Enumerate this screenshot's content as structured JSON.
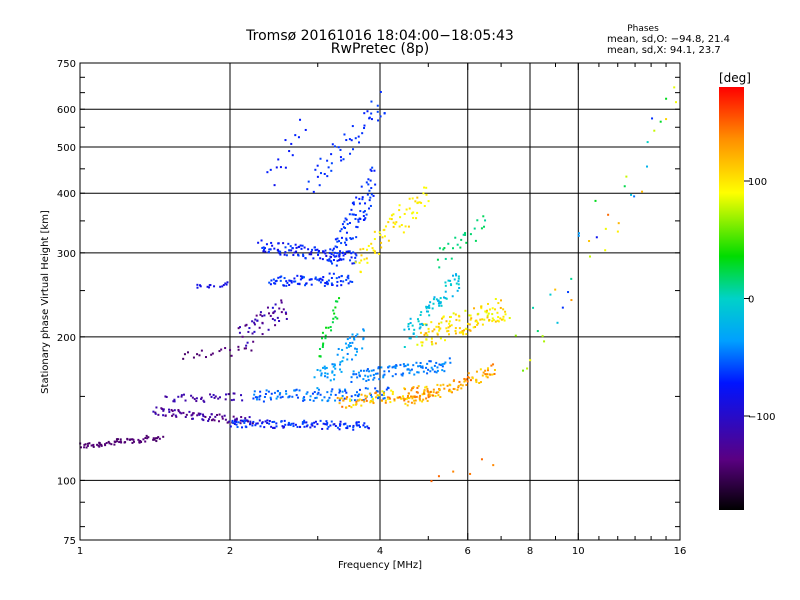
{
  "chart_data": {
    "type": "scatter",
    "title": "Tromsø 20161016 18:04:00−18:05:43",
    "subtitle": "RwPretec (8p)",
    "xlabel": "Frequency [MHz]",
    "ylabel": "Stationary phase Virtual Height [km]",
    "x_scale": "log",
    "y_scale": "log",
    "xlim": [
      1,
      16
    ],
    "ylim": [
      75,
      750
    ],
    "x_ticks": [
      1,
      2,
      4,
      6,
      8,
      10,
      16
    ],
    "x_tick_labels": [
      "1",
      "2",
      "4",
      "6",
      "8",
      "10",
      "16"
    ],
    "y_ticks": [
      75,
      100,
      200,
      300,
      400,
      500,
      600,
      750
    ],
    "y_tick_labels": [
      "75",
      "100",
      "200",
      "300",
      "400",
      "500",
      "600",
      "750"
    ],
    "grid": true,
    "stats": {
      "heading": "Phases",
      "line_o": "mean, sd,O: −94.8, 21.4",
      "line_x": "mean, sd,X:  94.1, 23.7"
    },
    "colorbar": {
      "label": "[deg]",
      "range": [
        -180,
        180
      ],
      "ticks": [
        100,
        0,
        -100
      ],
      "tick_labels": [
        "100",
        "0",
        "−100"
      ],
      "colormap": "rainbow"
    },
    "series": [
      {
        "type": "band",
        "f0": 1.0,
        "f1": 1.45,
        "h0": 118,
        "h1": 123,
        "ph0": -150,
        "ph1": -140,
        "n": 70,
        "s": 0.015
      },
      {
        "type": "band",
        "f0": 1.4,
        "f1": 2.2,
        "h0": 140,
        "h1": 133,
        "ph0": -145,
        "ph1": -125,
        "n": 80,
        "s": 0.02
      },
      {
        "type": "band",
        "f0": 1.5,
        "f1": 2.1,
        "h0": 148,
        "h1": 150,
        "ph0": -135,
        "ph1": -125,
        "n": 35,
        "s": 0.02
      },
      {
        "type": "band",
        "f0": 1.6,
        "f1": 2.2,
        "h0": 182,
        "h1": 188,
        "ph0": -150,
        "ph1": -140,
        "n": 20,
        "s": 0.02
      },
      {
        "type": "band",
        "f0": 1.7,
        "f1": 2.0,
        "h0": 255,
        "h1": 258,
        "ph0": -120,
        "ph1": -115,
        "n": 15,
        "s": 0.01
      },
      {
        "type": "band",
        "f0": 2.0,
        "f1": 3.8,
        "h0": 132,
        "h1": 130,
        "ph0": -120,
        "ph1": -90,
        "n": 120,
        "s": 0.02
      },
      {
        "type": "band",
        "f0": 2.2,
        "f1": 4.2,
        "h0": 150,
        "h1": 152,
        "ph0": -100,
        "ph1": -70,
        "n": 110,
        "s": 0.03
      },
      {
        "type": "band",
        "f0": 2.1,
        "f1": 2.6,
        "h0": 200,
        "h1": 230,
        "ph0": -145,
        "ph1": -120,
        "n": 50,
        "s": 0.06
      },
      {
        "type": "band",
        "f0": 2.3,
        "f1": 3.6,
        "h0": 310,
        "h1": 292,
        "ph0": -120,
        "ph1": -95,
        "n": 110,
        "s": 0.03
      },
      {
        "type": "band",
        "f0": 2.4,
        "f1": 3.5,
        "h0": 262,
        "h1": 262,
        "ph0": -115,
        "ph1": -90,
        "n": 80,
        "s": 0.025
      },
      {
        "type": "band",
        "f0": 3.2,
        "f1": 3.9,
        "h0": 290,
        "h1": 420,
        "ph0": -110,
        "ph1": -95,
        "n": 90,
        "s": 0.08
      },
      {
        "type": "band",
        "f0": 3.0,
        "f1": 3.7,
        "h0": 160,
        "h1": 200,
        "ph0": -80,
        "ph1": -60,
        "n": 60,
        "s": 0.06
      },
      {
        "type": "band",
        "f0": 3.0,
        "f1": 3.3,
        "h0": 180,
        "h1": 235,
        "ph0": 10,
        "ph1": 30,
        "n": 25,
        "s": 0.04
      },
      {
        "type": "band",
        "f0": 3.5,
        "f1": 5.5,
        "h0": 165,
        "h1": 175,
        "ph0": -90,
        "ph1": -70,
        "n": 100,
        "s": 0.03
      },
      {
        "type": "band",
        "f0": 3.3,
        "f1": 5.2,
        "h0": 145,
        "h1": 155,
        "ph0": 100,
        "ph1": 150,
        "n": 100,
        "s": 0.03
      },
      {
        "type": "band",
        "f0": 4.5,
        "f1": 6.8,
        "h0": 145,
        "h1": 170,
        "ph0": 110,
        "ph1": 150,
        "n": 100,
        "s": 0.03
      },
      {
        "type": "band",
        "f0": 4.8,
        "f1": 7.2,
        "h0": 200,
        "h1": 230,
        "ph0": 90,
        "ph1": 130,
        "n": 130,
        "s": 0.06
      },
      {
        "type": "band",
        "f0": 4.5,
        "f1": 5.8,
        "h0": 200,
        "h1": 270,
        "ph0": -60,
        "ph1": -20,
        "n": 70,
        "s": 0.05
      },
      {
        "type": "band",
        "f0": 3.6,
        "f1": 5.0,
        "h0": 290,
        "h1": 395,
        "ph0": 95,
        "ph1": 120,
        "n": 70,
        "s": 0.07
      },
      {
        "type": "band",
        "f0": 2.9,
        "f1": 4.1,
        "h0": 420,
        "h1": 620,
        "ph0": -110,
        "ph1": -95,
        "n": 50,
        "s": 0.07
      },
      {
        "type": "band",
        "f0": 2.4,
        "f1": 2.8,
        "h0": 420,
        "h1": 560,
        "ph0": -115,
        "ph1": -105,
        "n": 15,
        "s": 0.06
      },
      {
        "type": "band",
        "f0": 5.2,
        "f1": 6.5,
        "h0": 290,
        "h1": 350,
        "ph0": -10,
        "ph1": 10,
        "n": 25,
        "s": 0.05
      },
      {
        "type": "band",
        "f0": 5.0,
        "f1": 6.8,
        "h0": 100,
        "h1": 110,
        "ph0": 140,
        "ph1": 160,
        "n": 6,
        "s": 0.03
      },
      {
        "type": "band",
        "f0": 7.5,
        "f1": 15.8,
        "h0": 180,
        "h1": 610,
        "ph0": -120,
        "ph1": 160,
        "n": 40,
        "s": 0.15
      }
    ]
  }
}
